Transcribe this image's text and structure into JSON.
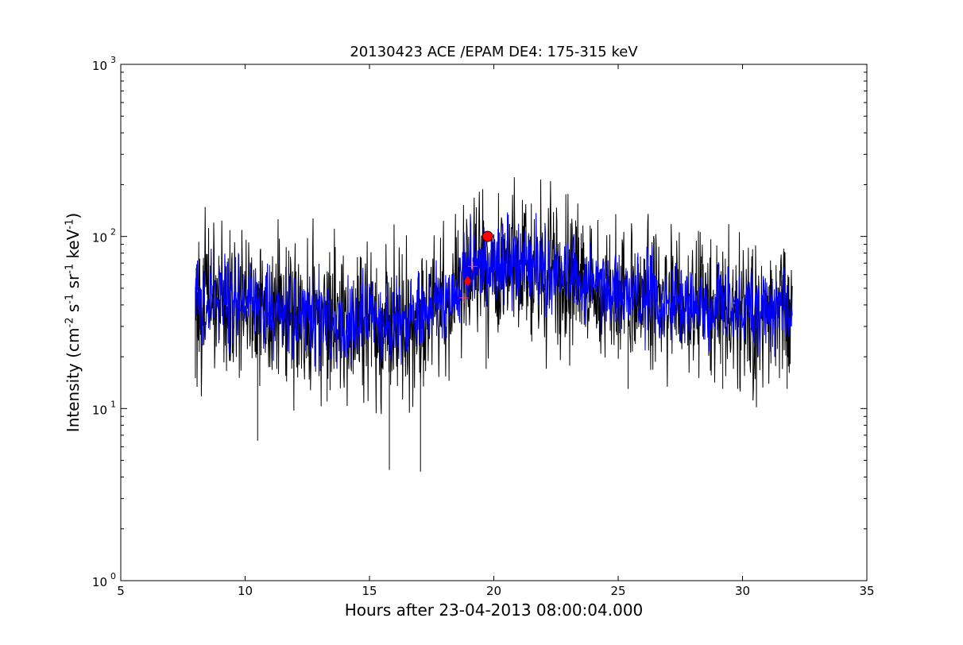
{
  "chart_data": {
    "type": "line",
    "title": "20130423 ACE /EPAM DE4: 175-315 keV",
    "xlabel": "Hours after 23-04-2013 08:00:04.000",
    "ylabel": {
      "prefix": "Intensity (cm",
      "exp1": "-2",
      "s": "s",
      "exp2": "-1",
      "sr": "sr",
      "exp3": "-1",
      "kev": "keV",
      "exp4": "-1",
      "suffix": ")"
    },
    "xlim": [
      5,
      35
    ],
    "ylim": [
      1,
      1000
    ],
    "yscale": "log",
    "x_ticks": [
      5,
      10,
      15,
      20,
      25,
      30,
      35
    ],
    "x_tick_labels": [
      "5",
      "10",
      "15",
      "20",
      "25",
      "30",
      "35"
    ],
    "y_ticks": [
      1,
      10,
      100,
      1000
    ],
    "y_tick_labels": [
      {
        "base": "10",
        "exp": "0"
      },
      {
        "base": "10",
        "exp": "1"
      },
      {
        "base": "10",
        "exp": "2"
      },
      {
        "base": "10",
        "exp": "3"
      }
    ],
    "grid": false,
    "series": [
      {
        "color": "#000000",
        "x": [
          8.0,
          8.5,
          9.0,
          9.5,
          10.0,
          10.5,
          11.0,
          11.5,
          12.0,
          12.5,
          13.0,
          13.5,
          14.0,
          14.5,
          15.0,
          15.5,
          16.0,
          16.5,
          17.0,
          17.5,
          18.0,
          18.5,
          19.0,
          19.5,
          20.0,
          20.5,
          21.0,
          21.5,
          22.0,
          22.5,
          23.0,
          23.5,
          24.0,
          24.5,
          25.0,
          25.5,
          26.0,
          26.5,
          27.0,
          27.5,
          28.0,
          28.5,
          29.0,
          29.5,
          30.0,
          30.5,
          31.0,
          31.5,
          32.0
        ],
        "y": [
          42,
          44,
          43,
          41,
          42,
          40,
          38,
          36,
          35,
          34,
          34,
          33,
          33,
          34,
          33,
          33,
          32,
          32,
          33,
          40,
          44,
          46,
          62,
          68,
          66,
          70,
          72,
          68,
          64,
          60,
          58,
          54,
          52,
          50,
          48,
          45,
          44,
          42,
          41,
          40,
          39,
          38,
          38,
          37,
          37,
          36,
          36,
          36,
          36
        ],
        "spread": 0.22,
        "dips": [
          {
            "x": 8.0,
            "y": 15
          },
          {
            "x": 10.5,
            "y": 6.5
          },
          {
            "x": 13.3,
            "y": 11
          },
          {
            "x": 15.8,
            "y": 4.4
          },
          {
            "x": 17.05,
            "y": 4.3
          },
          {
            "x": 19.7,
            "y": 17
          },
          {
            "x": 25.4,
            "y": 13
          },
          {
            "x": 27.5,
            "y": 13
          },
          {
            "x": 29.2,
            "y": 13
          },
          {
            "x": 31.8,
            "y": 13
          }
        ]
      },
      {
        "color": "#0000ff",
        "x": [
          8.0,
          8.5,
          9.0,
          9.5,
          10.0,
          10.5,
          11.0,
          11.5,
          12.0,
          12.5,
          13.0,
          13.5,
          14.0,
          14.5,
          15.0,
          15.5,
          16.0,
          16.5,
          17.0,
          17.5,
          18.0,
          18.5,
          19.0,
          19.5,
          20.0,
          20.5,
          21.0,
          21.5,
          22.0,
          22.5,
          23.0,
          23.5,
          24.0,
          24.5,
          25.0,
          25.5,
          26.0,
          26.5,
          27.0,
          27.5,
          28.0,
          28.5,
          29.0,
          29.5,
          30.0,
          30.5,
          31.0,
          31.5,
          32.0
        ],
        "y": [
          42,
          44,
          43,
          41,
          42,
          40,
          38,
          36,
          35,
          34,
          34,
          33,
          33,
          34,
          33,
          33,
          32,
          32,
          33,
          40,
          44,
          46,
          62,
          68,
          66,
          70,
          72,
          68,
          64,
          60,
          58,
          54,
          52,
          50,
          48,
          45,
          44,
          42,
          41,
          40,
          39,
          38,
          38,
          37,
          37,
          36,
          36,
          36,
          36
        ],
        "spread": 0.12
      }
    ],
    "markers": [
      {
        "shape": "circle",
        "x": 19.75,
        "y": 100,
        "color": "#ff0000"
      },
      {
        "shape": "diamond",
        "x": 18.95,
        "y": 55,
        "color": "#ff0000"
      },
      {
        "shape": "plus",
        "x": 18.8,
        "y": 44,
        "color": "#ff4081"
      },
      {
        "shape": "plus",
        "x": 19.15,
        "y": 67,
        "color": "#ff4081"
      }
    ]
  }
}
